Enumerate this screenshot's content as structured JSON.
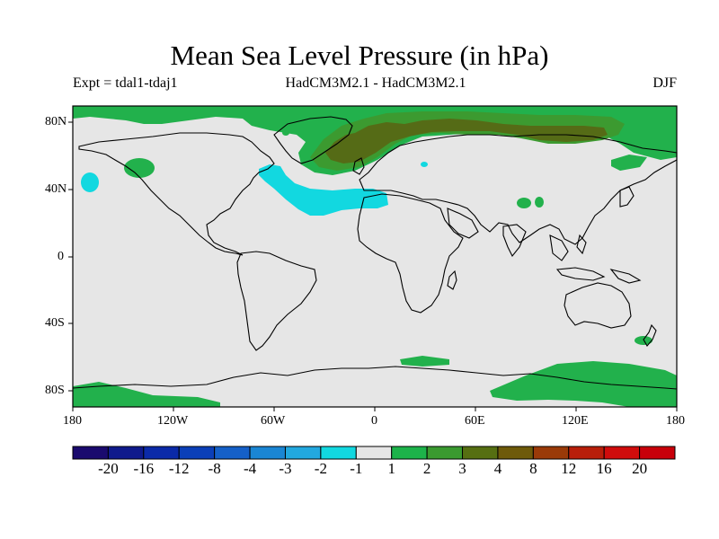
{
  "title": "Mean Sea Level Pressure (in hPa)",
  "subtitle_left": "Expt = tdal1-tdaj1",
  "subtitle_center": "HadCM3M2.1 - HadCM3M2.1",
  "subtitle_right": "DJF",
  "lat_ticks": [
    "80N",
    "40N",
    "0",
    "40S",
    "80S"
  ],
  "lon_ticks": [
    "180",
    "120W",
    "60W",
    "0",
    "60E",
    "120E",
    "180"
  ],
  "colorbar": {
    "labels": [
      "-20",
      "-16",
      "-12",
      "-8",
      "-4",
      "-3",
      "-2",
      "-1",
      "1",
      "2",
      "3",
      "4",
      "8",
      "12",
      "16",
      "20"
    ],
    "colors": [
      "#1a0a6e",
      "#0f1a8c",
      "#0b2aa8",
      "#0b3fb8",
      "#1560c8",
      "#1a86d4",
      "#22a8df",
      "#12d8e0",
      "#e6e6e6",
      "#1db34a",
      "#3a9a30",
      "#566f12",
      "#6e5a0a",
      "#9a3a08",
      "#b81e0a",
      "#d00c0c",
      "#c8000a"
    ]
  },
  "map": {
    "background_color": "#e6e6e6",
    "anomaly_regions": [
      {
        "level": "1 to 2",
        "color": "#22b14c"
      },
      {
        "level": "2 to 3",
        "color": "#3c9a30"
      },
      {
        "level": "3 to 4",
        "color": "#556b16"
      },
      {
        "level": "-2 to -1",
        "color": "#12d8e0"
      }
    ]
  }
}
